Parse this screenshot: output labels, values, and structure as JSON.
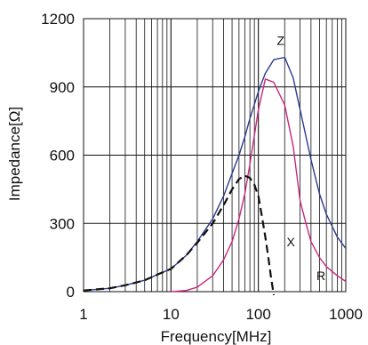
{
  "chart_data": {
    "type": "line",
    "title": "",
    "xlabel": "Frequency[MHz]",
    "ylabel": "Impedance[Ω]",
    "xscale": "log",
    "xlim": [
      1,
      1000
    ],
    "ylim": [
      0,
      1200
    ],
    "grid": true,
    "x_ticks": [
      1,
      10,
      100,
      1000
    ],
    "x_tick_labels": [
      "1",
      "10",
      "100",
      "1000"
    ],
    "y_ticks": [
      0,
      300,
      600,
      900,
      1200
    ],
    "y_tick_labels": [
      "0",
      "300",
      "600",
      "900",
      "1200"
    ],
    "series": [
      {
        "name": "Z",
        "color": "#2b3a8f",
        "style": "solid",
        "label_at": [
          180,
          1085
        ],
        "points": [
          [
            1,
            5
          ],
          [
            2,
            15
          ],
          [
            3,
            28
          ],
          [
            5,
            50
          ],
          [
            7,
            75
          ],
          [
            10,
            100
          ],
          [
            15,
            160
          ],
          [
            20,
            220
          ],
          [
            30,
            320
          ],
          [
            40,
            420
          ],
          [
            50,
            520
          ],
          [
            60,
            600
          ],
          [
            70,
            680
          ],
          [
            80,
            760
          ],
          [
            100,
            880
          ],
          [
            120,
            960
          ],
          [
            150,
            1020
          ],
          [
            200,
            1030
          ],
          [
            250,
            940
          ],
          [
            300,
            800
          ],
          [
            400,
            580
          ],
          [
            500,
            430
          ],
          [
            600,
            340
          ],
          [
            800,
            240
          ],
          [
            1000,
            190
          ]
        ]
      },
      {
        "name": "R",
        "color": "#c8287e",
        "style": "solid",
        "label_at": [
          520,
          50
        ],
        "points": [
          [
            10,
            0
          ],
          [
            15,
            5
          ],
          [
            20,
            20
          ],
          [
            30,
            70
          ],
          [
            40,
            140
          ],
          [
            50,
            220
          ],
          [
            60,
            320
          ],
          [
            70,
            430
          ],
          [
            80,
            560
          ],
          [
            100,
            800
          ],
          [
            120,
            935
          ],
          [
            150,
            920
          ],
          [
            200,
            820
          ],
          [
            250,
            640
          ],
          [
            300,
            400
          ],
          [
            350,
            300
          ],
          [
            400,
            220
          ],
          [
            500,
            150
          ],
          [
            600,
            110
          ],
          [
            800,
            70
          ],
          [
            1000,
            45
          ]
        ]
      },
      {
        "name": "X",
        "color": "#111111",
        "style": "dashed",
        "label_at": [
          235,
          200
        ],
        "points": [
          [
            1,
            5
          ],
          [
            2,
            15
          ],
          [
            3,
            28
          ],
          [
            5,
            50
          ],
          [
            7,
            75
          ],
          [
            10,
            100
          ],
          [
            15,
            160
          ],
          [
            20,
            215
          ],
          [
            30,
            300
          ],
          [
            40,
            380
          ],
          [
            50,
            450
          ],
          [
            60,
            495
          ],
          [
            70,
            510
          ],
          [
            80,
            500
          ],
          [
            90,
            470
          ],
          [
            100,
            420
          ],
          [
            110,
            330
          ],
          [
            120,
            240
          ],
          [
            130,
            150
          ],
          [
            140,
            60
          ],
          [
            150,
            -15
          ]
        ]
      }
    ]
  }
}
